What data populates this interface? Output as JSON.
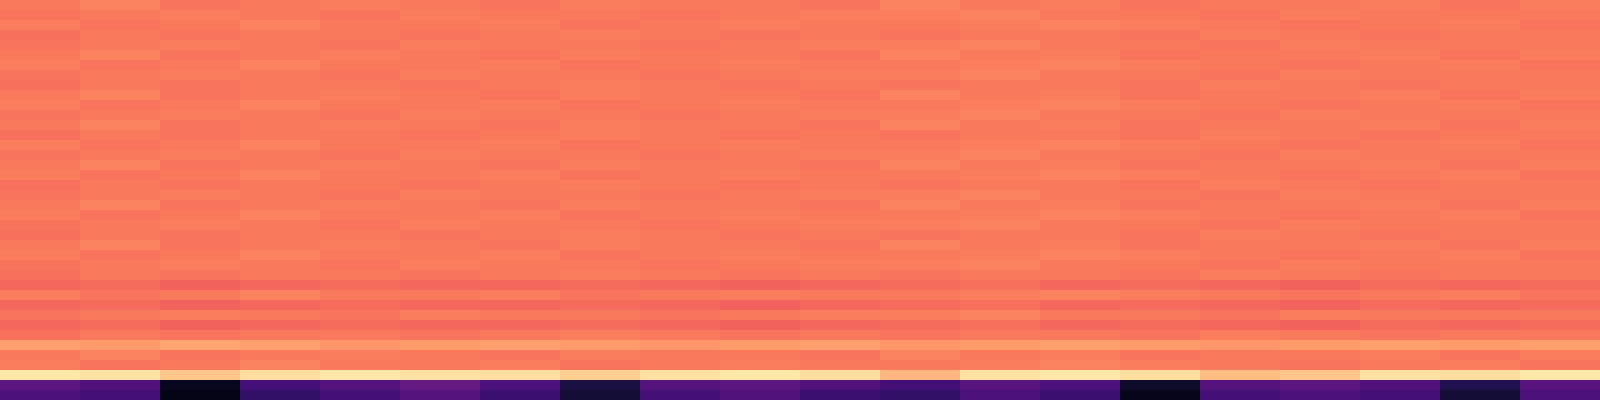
{
  "chart_data": {
    "type": "heatmap",
    "color": "magma",
    "color_range": [
      0,
      1
    ],
    "tick_labels": false,
    "cells": [
      [
        0.72,
        0.74,
        0.71,
        0.72,
        0.73,
        0.72,
        0.71,
        0.73,
        0.72,
        0.72,
        0.71,
        0.74,
        0.72,
        0.73,
        0.71,
        0.72,
        0.72,
        0.73,
        0.71,
        0.73
      ],
      [
        0.71,
        0.72,
        0.73,
        0.72,
        0.71,
        0.73,
        0.72,
        0.72,
        0.71,
        0.72,
        0.73,
        0.73,
        0.74,
        0.72,
        0.72,
        0.71,
        0.73,
        0.72,
        0.72,
        0.72
      ],
      [
        0.73,
        0.71,
        0.72,
        0.74,
        0.72,
        0.72,
        0.73,
        0.71,
        0.72,
        0.73,
        0.72,
        0.72,
        0.73,
        0.74,
        0.73,
        0.72,
        0.71,
        0.72,
        0.73,
        0.71
      ],
      [
        0.7,
        0.72,
        0.71,
        0.72,
        0.72,
        0.71,
        0.72,
        0.73,
        0.72,
        0.71,
        0.72,
        0.71,
        0.72,
        0.72,
        0.71,
        0.73,
        0.72,
        0.71,
        0.72,
        0.72
      ],
      [
        0.71,
        0.72,
        0.73,
        0.72,
        0.71,
        0.73,
        0.72,
        0.72,
        0.71,
        0.72,
        0.73,
        0.73,
        0.74,
        0.72,
        0.72,
        0.71,
        0.73,
        0.72,
        0.72,
        0.72
      ],
      [
        0.72,
        0.74,
        0.71,
        0.72,
        0.73,
        0.72,
        0.71,
        0.73,
        0.72,
        0.72,
        0.71,
        0.74,
        0.72,
        0.73,
        0.71,
        0.72,
        0.72,
        0.73,
        0.71,
        0.73
      ],
      [
        0.73,
        0.71,
        0.72,
        0.74,
        0.72,
        0.72,
        0.73,
        0.71,
        0.72,
        0.73,
        0.72,
        0.72,
        0.73,
        0.74,
        0.73,
        0.72,
        0.71,
        0.72,
        0.73,
        0.71
      ],
      [
        0.71,
        0.72,
        0.73,
        0.72,
        0.71,
        0.73,
        0.72,
        0.72,
        0.71,
        0.72,
        0.73,
        0.73,
        0.74,
        0.72,
        0.72,
        0.71,
        0.73,
        0.72,
        0.72,
        0.72
      ],
      [
        0.7,
        0.72,
        0.71,
        0.72,
        0.72,
        0.71,
        0.72,
        0.73,
        0.72,
        0.71,
        0.72,
        0.71,
        0.72,
        0.72,
        0.71,
        0.73,
        0.72,
        0.71,
        0.72,
        0.72
      ],
      [
        0.72,
        0.74,
        0.71,
        0.72,
        0.73,
        0.72,
        0.71,
        0.73,
        0.72,
        0.72,
        0.71,
        0.74,
        0.72,
        0.73,
        0.71,
        0.72,
        0.72,
        0.73,
        0.71,
        0.73
      ],
      [
        0.73,
        0.71,
        0.72,
        0.74,
        0.72,
        0.72,
        0.73,
        0.71,
        0.72,
        0.73,
        0.72,
        0.72,
        0.73,
        0.74,
        0.73,
        0.72,
        0.71,
        0.72,
        0.73,
        0.71
      ],
      [
        0.71,
        0.72,
        0.73,
        0.72,
        0.71,
        0.73,
        0.72,
        0.72,
        0.71,
        0.72,
        0.73,
        0.73,
        0.74,
        0.72,
        0.72,
        0.71,
        0.73,
        0.72,
        0.72,
        0.72
      ],
      [
        0.72,
        0.74,
        0.71,
        0.72,
        0.73,
        0.72,
        0.71,
        0.73,
        0.72,
        0.72,
        0.71,
        0.74,
        0.72,
        0.73,
        0.71,
        0.72,
        0.72,
        0.73,
        0.71,
        0.73
      ],
      [
        0.7,
        0.72,
        0.71,
        0.72,
        0.72,
        0.71,
        0.72,
        0.73,
        0.72,
        0.71,
        0.72,
        0.71,
        0.72,
        0.72,
        0.71,
        0.73,
        0.72,
        0.71,
        0.72,
        0.72
      ],
      [
        0.73,
        0.71,
        0.72,
        0.74,
        0.72,
        0.72,
        0.73,
        0.71,
        0.72,
        0.73,
        0.72,
        0.72,
        0.73,
        0.74,
        0.73,
        0.72,
        0.71,
        0.72,
        0.73,
        0.71
      ],
      [
        0.71,
        0.72,
        0.73,
        0.72,
        0.71,
        0.73,
        0.72,
        0.72,
        0.71,
        0.72,
        0.73,
        0.73,
        0.74,
        0.72,
        0.72,
        0.71,
        0.73,
        0.72,
        0.72,
        0.72
      ],
      [
        0.72,
        0.74,
        0.71,
        0.72,
        0.73,
        0.72,
        0.71,
        0.73,
        0.72,
        0.72,
        0.71,
        0.74,
        0.72,
        0.73,
        0.71,
        0.72,
        0.72,
        0.73,
        0.71,
        0.73
      ],
      [
        0.73,
        0.71,
        0.72,
        0.74,
        0.72,
        0.72,
        0.73,
        0.71,
        0.72,
        0.73,
        0.72,
        0.72,
        0.73,
        0.74,
        0.73,
        0.72,
        0.71,
        0.72,
        0.73,
        0.71
      ],
      [
        0.7,
        0.72,
        0.71,
        0.72,
        0.72,
        0.71,
        0.72,
        0.73,
        0.72,
        0.71,
        0.72,
        0.71,
        0.72,
        0.72,
        0.71,
        0.73,
        0.72,
        0.71,
        0.72,
        0.72
      ],
      [
        0.71,
        0.72,
        0.73,
        0.72,
        0.71,
        0.73,
        0.72,
        0.72,
        0.71,
        0.72,
        0.73,
        0.73,
        0.74,
        0.72,
        0.72,
        0.71,
        0.73,
        0.72,
        0.72,
        0.72
      ],
      [
        0.72,
        0.74,
        0.71,
        0.72,
        0.73,
        0.72,
        0.71,
        0.73,
        0.72,
        0.72,
        0.71,
        0.74,
        0.72,
        0.73,
        0.71,
        0.72,
        0.72,
        0.73,
        0.71,
        0.73
      ],
      [
        0.73,
        0.71,
        0.72,
        0.74,
        0.72,
        0.72,
        0.73,
        0.71,
        0.72,
        0.73,
        0.72,
        0.72,
        0.73,
        0.74,
        0.73,
        0.72,
        0.71,
        0.72,
        0.73,
        0.71
      ],
      [
        0.71,
        0.72,
        0.73,
        0.72,
        0.71,
        0.73,
        0.72,
        0.72,
        0.71,
        0.72,
        0.73,
        0.73,
        0.74,
        0.72,
        0.72,
        0.71,
        0.73,
        0.72,
        0.72,
        0.72
      ],
      [
        0.7,
        0.72,
        0.71,
        0.72,
        0.72,
        0.71,
        0.72,
        0.73,
        0.72,
        0.71,
        0.72,
        0.71,
        0.72,
        0.72,
        0.71,
        0.73,
        0.72,
        0.71,
        0.72,
        0.72
      ],
      [
        0.72,
        0.74,
        0.71,
        0.72,
        0.73,
        0.72,
        0.71,
        0.73,
        0.72,
        0.72,
        0.71,
        0.74,
        0.72,
        0.73,
        0.71,
        0.72,
        0.72,
        0.73,
        0.71,
        0.73
      ],
      [
        0.73,
        0.71,
        0.72,
        0.74,
        0.72,
        0.72,
        0.73,
        0.71,
        0.72,
        0.73,
        0.72,
        0.72,
        0.73,
        0.74,
        0.73,
        0.72,
        0.71,
        0.72,
        0.73,
        0.71
      ],
      [
        0.71,
        0.72,
        0.73,
        0.72,
        0.71,
        0.73,
        0.72,
        0.72,
        0.71,
        0.72,
        0.73,
        0.73,
        0.74,
        0.72,
        0.72,
        0.71,
        0.73,
        0.72,
        0.72,
        0.72
      ],
      [
        0.7,
        0.72,
        0.71,
        0.72,
        0.72,
        0.71,
        0.72,
        0.73,
        0.72,
        0.71,
        0.72,
        0.71,
        0.72,
        0.72,
        0.71,
        0.73,
        0.72,
        0.71,
        0.72,
        0.72
      ],
      [
        0.68,
        0.69,
        0.67,
        0.68,
        0.69,
        0.68,
        0.68,
        0.69,
        0.68,
        0.67,
        0.68,
        0.69,
        0.7,
        0.68,
        0.69,
        0.68,
        0.67,
        0.69,
        0.68,
        0.69
      ],
      [
        0.73,
        0.71,
        0.72,
        0.74,
        0.72,
        0.72,
        0.73,
        0.71,
        0.72,
        0.73,
        0.72,
        0.72,
        0.73,
        0.74,
        0.73,
        0.72,
        0.71,
        0.72,
        0.73,
        0.71
      ],
      [
        0.68,
        0.69,
        0.67,
        0.68,
        0.69,
        0.68,
        0.68,
        0.69,
        0.68,
        0.67,
        0.68,
        0.69,
        0.7,
        0.68,
        0.69,
        0.68,
        0.67,
        0.69,
        0.68,
        0.69
      ],
      [
        0.71,
        0.72,
        0.73,
        0.72,
        0.71,
        0.73,
        0.72,
        0.72,
        0.71,
        0.72,
        0.73,
        0.73,
        0.74,
        0.72,
        0.72,
        0.71,
        0.73,
        0.72,
        0.72,
        0.72
      ],
      [
        0.68,
        0.69,
        0.67,
        0.68,
        0.69,
        0.68,
        0.68,
        0.69,
        0.68,
        0.67,
        0.68,
        0.69,
        0.7,
        0.68,
        0.69,
        0.68,
        0.67,
        0.69,
        0.68,
        0.69
      ],
      [
        0.7,
        0.72,
        0.71,
        0.72,
        0.72,
        0.71,
        0.72,
        0.73,
        0.72,
        0.71,
        0.72,
        0.71,
        0.72,
        0.72,
        0.71,
        0.73,
        0.72,
        0.71,
        0.72,
        0.72
      ],
      [
        0.8,
        0.79,
        0.81,
        0.8,
        0.78,
        0.79,
        0.8,
        0.79,
        0.78,
        0.79,
        0.8,
        0.78,
        0.79,
        0.8,
        0.79,
        0.78,
        0.79,
        0.8,
        0.79,
        0.8
      ],
      [
        0.72,
        0.74,
        0.71,
        0.72,
        0.73,
        0.72,
        0.71,
        0.73,
        0.72,
        0.72,
        0.71,
        0.74,
        0.72,
        0.73,
        0.71,
        0.72,
        0.72,
        0.73,
        0.71,
        0.73
      ],
      [
        0.73,
        0.71,
        0.72,
        0.74,
        0.72,
        0.72,
        0.73,
        0.71,
        0.72,
        0.73,
        0.72,
        0.72,
        0.73,
        0.74,
        0.73,
        0.72,
        0.71,
        0.72,
        0.73,
        0.71
      ],
      [
        0.95,
        0.94,
        0.88,
        0.93,
        0.95,
        0.94,
        0.93,
        0.9,
        0.94,
        0.95,
        0.93,
        0.85,
        0.94,
        0.95,
        0.93,
        0.86,
        0.88,
        0.94,
        0.93,
        0.95
      ],
      [
        0.28,
        0.25,
        0.06,
        0.22,
        0.26,
        0.3,
        0.24,
        0.12,
        0.26,
        0.28,
        0.25,
        0.22,
        0.27,
        0.24,
        0.08,
        0.26,
        0.28,
        0.25,
        0.14,
        0.27
      ],
      [
        0.24,
        0.22,
        0.04,
        0.18,
        0.22,
        0.26,
        0.2,
        0.1,
        0.22,
        0.25,
        0.2,
        0.18,
        0.24,
        0.2,
        0.05,
        0.22,
        0.24,
        0.22,
        0.1,
        0.24
      ]
    ]
  }
}
